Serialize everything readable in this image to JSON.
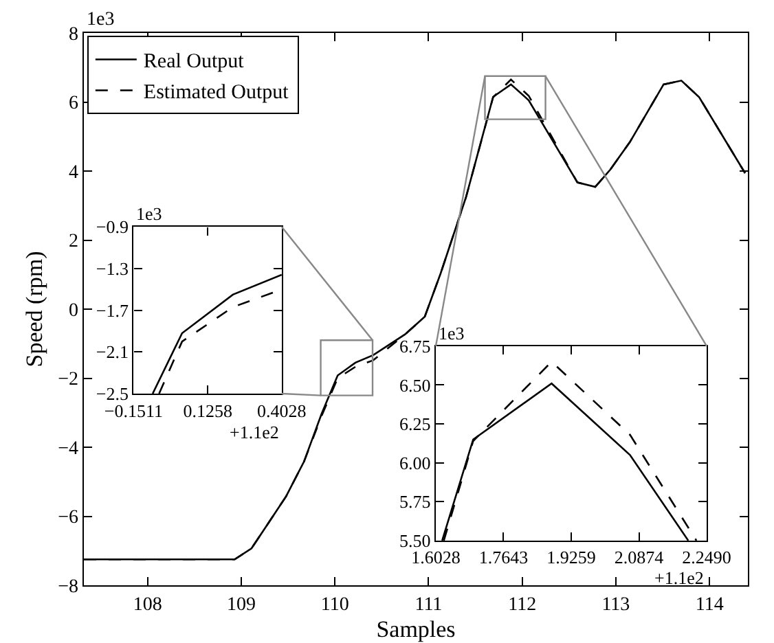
{
  "chart_data": [
    {
      "type": "line",
      "xlabel": "Samples",
      "ylabel": "Speed (rpm)",
      "xlim": [
        107.32,
        114.41
      ],
      "xticks": [
        108,
        109,
        110,
        111,
        112,
        113,
        114
      ],
      "ylim": [
        -8,
        8
      ],
      "yticks": [
        {
          "value": -8,
          "label": "−8"
        },
        {
          "value": -6,
          "label": "−6"
        },
        {
          "value": -4,
          "label": "−4"
        },
        {
          "value": -2,
          "label": "−2"
        },
        0,
        2,
        4,
        6,
        8
      ],
      "x": [
        107.32,
        108.93,
        109.11,
        109.29,
        109.48,
        109.67,
        109.86,
        110.03,
        110.22,
        110.41,
        110.75,
        110.96,
        111.13,
        111.4,
        111.69,
        111.88,
        112.07,
        112.59,
        112.78,
        112.94,
        113.15,
        113.51,
        113.7,
        113.89,
        114.38
      ],
      "series": [
        {
          "name": "Real Output",
          "color": "#000000",
          "line_style": "solid",
          "values": [
            -7.25,
            -7.25,
            -6.93,
            -6.2,
            -5.42,
            -4.42,
            -3.02,
            -1.92,
            -1.55,
            -1.33,
            -0.73,
            -0.22,
            1.04,
            3.24,
            6.15,
            6.51,
            6.05,
            3.67,
            3.54,
            4.04,
            4.84,
            6.51,
            6.62,
            6.14,
            3.94
          ]
        },
        {
          "name": "Estimated Output",
          "color": "#000000",
          "line_style": "dashed",
          "values": [
            -7.25,
            -7.25,
            -6.93,
            -6.2,
            -5.42,
            -4.42,
            -3.08,
            -2.0,
            -1.67,
            -1.48,
            -0.73,
            -0.22,
            1.04,
            3.24,
            6.14,
            6.65,
            6.18,
            3.67,
            3.54,
            4.04,
            4.84,
            6.51,
            6.62,
            6.14,
            3.94
          ]
        }
      ],
      "legend": "top left",
      "grid": false,
      "marker": "none",
      "annotations": [
        "1e3"
      ]
    },
    {
      "type": "line",
      "xlim": [
        -0.1511,
        0.4028
      ],
      "xticks": [
        {
          "value": -0.1511,
          "label": "−0.1511"
        },
        0.1258,
        0.4028
      ],
      "ylim": [
        -2.5,
        -0.9
      ],
      "yticks": [
        {
          "value": -2.5,
          "label": "−2.5"
        },
        {
          "value": -2.1,
          "label": "−2.1"
        },
        {
          "value": -1.7,
          "label": "−1.7"
        },
        {
          "value": -1.3,
          "label": "−1.3"
        },
        {
          "value": -0.9,
          "label": "−0.9"
        }
      ],
      "series": [
        {
          "color": "#000000",
          "line_style": "solid",
          "x": [
            -0.08,
            0.03,
            0.22,
            0.4028
          ],
          "values": [
            -2.5,
            -1.92,
            -1.55,
            -1.36
          ]
        },
        {
          "color": "#000000",
          "line_style": "dashed",
          "x": [
            -0.056,
            0.03,
            0.22,
            0.4028
          ],
          "values": [
            -2.5,
            -2.0,
            -1.67,
            -1.5
          ]
        }
      ],
      "legend": false,
      "grid": false,
      "marker": "none",
      "annotations": [
        "1e3",
        "+1.1e2"
      ]
    },
    {
      "type": "line",
      "xlim": [
        1.6028,
        2.249
      ],
      "xticks": [
        1.6028,
        1.7643,
        1.9259,
        2.0874,
        {
          "value": 2.249,
          "label": "2.2490"
        }
      ],
      "ylim": [
        5.5,
        6.75
      ],
      "yticks": [
        {
          "value": 5.5,
          "label": "5.50"
        },
        5.75,
        {
          "value": 6.0,
          "label": "6.00"
        },
        6.25,
        {
          "value": 6.5,
          "label": "6.50"
        },
        6.75
      ],
      "series": [
        {
          "color": "#000000",
          "line_style": "solid",
          "x": [
            1.618,
            1.692,
            1.879,
            2.066,
            2.205
          ],
          "values": [
            5.5,
            6.15,
            6.51,
            6.05,
            5.5
          ]
        },
        {
          "color": "#000000",
          "line_style": "dashed",
          "x": [
            1.622,
            1.692,
            1.879,
            2.066,
            2.2245
          ],
          "values": [
            5.5,
            6.14,
            6.65,
            6.18,
            5.5
          ]
        }
      ],
      "legend": false,
      "grid": false,
      "marker": "none",
      "annotations": [
        "1e3",
        "+1.1e2"
      ]
    }
  ]
}
